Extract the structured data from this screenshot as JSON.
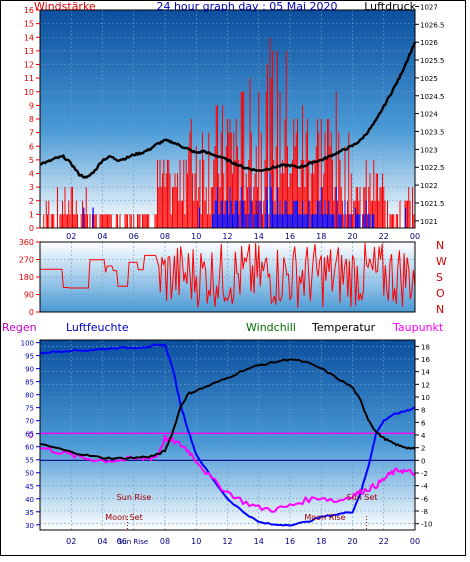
{
  "chart_data": [
    {
      "type": "line",
      "title": "24 hour graph day : 05 Mai 2020",
      "left_axis_label": "Windstärke",
      "right_axis_label": "Luftdruck",
      "left_ylim": [
        0,
        16
      ],
      "left_ticks": [
        "0",
        "1",
        "2",
        "3",
        "4",
        "5",
        "6",
        "7",
        "8",
        "9",
        "10",
        "11",
        "12",
        "13",
        "14",
        "15",
        "16"
      ],
      "right_ylim": [
        1020.8,
        1026.9
      ],
      "right_ticks": [
        "1021",
        "1021.5",
        "1022",
        "1022.5",
        "1023",
        "1023.5",
        "1024",
        "1024.5",
        "1025",
        "1025.5",
        "1026",
        "1026.5",
        "1027"
      ],
      "x_ticks": [
        "02",
        "04",
        "06",
        "08",
        "10",
        "12",
        "14",
        "16",
        "18",
        "20",
        "22",
        "00"
      ],
      "grid": true,
      "series": [
        {
          "name": "Luftdruck",
          "color": "#000000",
          "x_hours": [
            0,
            0.5,
            1,
            1.5,
            2,
            2.5,
            3,
            3.5,
            4,
            4.5,
            5,
            5.5,
            6,
            6.5,
            7,
            7.5,
            8,
            8.5,
            9,
            9.5,
            10,
            10.5,
            11,
            11.5,
            12,
            12.5,
            13,
            13.5,
            14,
            14.5,
            15,
            15.5,
            16,
            16.5,
            17,
            17.5,
            18,
            18.5,
            19,
            19.5,
            20,
            20.5,
            21,
            21.5,
            22,
            22.5,
            23,
            23.5,
            24
          ],
          "values": [
            1022.6,
            1022.65,
            1022.75,
            1022.8,
            1022.6,
            1022.3,
            1022.2,
            1022.4,
            1022.7,
            1022.8,
            1022.7,
            1022.75,
            1022.85,
            1022.9,
            1023.0,
            1023.15,
            1023.25,
            1023.2,
            1023.1,
            1023.0,
            1022.9,
            1022.95,
            1022.85,
            1022.8,
            1022.7,
            1022.6,
            1022.5,
            1022.45,
            1022.4,
            1022.45,
            1022.5,
            1022.55,
            1022.55,
            1022.5,
            1022.55,
            1022.65,
            1022.7,
            1022.8,
            1022.9,
            1023.0,
            1023.1,
            1023.25,
            1023.5,
            1023.8,
            1024.2,
            1024.6,
            1025.0,
            1025.5,
            1026.0
          ]
        }
      ]
    },
    {
      "type": "line",
      "title": "",
      "ylim": [
        0,
        360
      ],
      "left_ticks": [
        "0",
        "90",
        "180",
        "270",
        "360"
      ],
      "right_labels": [
        "N",
        "W",
        "S",
        "O",
        "N"
      ],
      "x_ticks": [
        "02",
        "04",
        "06",
        "08",
        "10",
        "12",
        "14",
        "16",
        "18",
        "20",
        "22",
        "00"
      ]
    },
    {
      "type": "line",
      "title": "",
      "legend": [
        "Regen",
        "Luftfeuchte",
        "Windchill",
        "Temperatur",
        "Taupunkt"
      ],
      "left_ylim": [
        28,
        101
      ],
      "left_ticks": [
        "30",
        "35",
        "40",
        "45",
        "50",
        "55",
        "60",
        "65",
        "70",
        "75",
        "80",
        "85",
        "90",
        "95",
        "100"
      ],
      "right_ylim": [
        -11,
        19
      ],
      "right_ticks": [
        "-10",
        "-8",
        "-6",
        "-4",
        "-2",
        "0",
        "2",
        "4",
        "6",
        "8",
        "10",
        "12",
        "14",
        "16",
        "18"
      ],
      "regen_zero_label": "0",
      "x_ticks": [
        "02",
        "04",
        "06",
        "08",
        "10",
        "12",
        "14",
        "16",
        "18",
        "20",
        "22",
        "00"
      ],
      "annotations": [
        "Sun Rise",
        "Moon Set",
        "Sun Rise",
        "Moon Rise",
        "Sun Set"
      ],
      "series": [
        {
          "name": "Luftfeuchte",
          "color": "#0000ff",
          "x_hours": [
            0,
            1,
            2,
            3,
            4,
            5,
            6,
            7,
            7.5,
            8,
            8.5,
            9,
            9.5,
            10,
            11,
            12,
            13,
            14,
            15,
            16,
            17,
            18,
            19,
            20,
            20.5,
            21,
            21.5,
            22,
            22.5,
            23,
            23.5,
            24
          ],
          "values": [
            96,
            96.5,
            97,
            97,
            97.5,
            98,
            98,
            98.5,
            99,
            99,
            90,
            76,
            66,
            57,
            48,
            40,
            35,
            31,
            30,
            30,
            31,
            33,
            34,
            35,
            42,
            52,
            65,
            70,
            72,
            73,
            74,
            75
          ]
        },
        {
          "name": "Temperatur",
          "color": "#000000",
          "x_hours": [
            0,
            1,
            2,
            3,
            4,
            5,
            6,
            7,
            7.5,
            8,
            8.5,
            9,
            9.5,
            10,
            11,
            12,
            13,
            14,
            15,
            16,
            17,
            18,
            19,
            20,
            20.5,
            21,
            21.5,
            22,
            22.5,
            23,
            23.5,
            24
          ],
          "values": [
            2.5,
            2.0,
            1.3,
            0.8,
            0.4,
            0.3,
            0.4,
            0.6,
            0.9,
            1.5,
            4.5,
            8.5,
            10.5,
            11.0,
            12.0,
            13.0,
            14.2,
            15.0,
            15.5,
            16.0,
            15.5,
            14.5,
            13.0,
            11.5,
            9.5,
            6.5,
            4.5,
            3.5,
            2.8,
            2.3,
            2.0,
            1.8
          ]
        },
        {
          "name": "Taupunkt",
          "color": "#ff00ff",
          "x_hours": [
            0,
            1,
            2,
            3,
            4,
            5,
            6,
            7,
            7.5,
            8,
            8.5,
            9,
            9.5,
            10,
            11,
            12,
            13,
            14,
            15,
            16,
            17,
            18,
            19,
            20,
            20.5,
            21,
            21.5,
            22,
            22.5,
            23,
            23.5,
            24
          ],
          "values": [
            2.0,
            1.5,
            0.8,
            0.3,
            0.0,
            0.0,
            0.2,
            0.3,
            0.7,
            3.5,
            3.0,
            2.5,
            1.5,
            0.0,
            -3.0,
            -5.0,
            -6.5,
            -7.5,
            -7.8,
            -7.2,
            -6.3,
            -5.8,
            -6.5,
            -5.5,
            -5.0,
            -4.5,
            -4.0,
            -3.0,
            -2.0,
            -1.5,
            -1.8,
            -2.0
          ]
        }
      ]
    }
  ]
}
